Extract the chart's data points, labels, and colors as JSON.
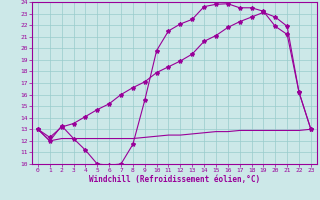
{
  "xlabel": "Windchill (Refroidissement éolien,°C)",
  "background_color": "#cce8e8",
  "grid_color": "#99cccc",
  "line_color": "#990099",
  "xlim": [
    -0.5,
    23.5
  ],
  "ylim": [
    10,
    24
  ],
  "xticks": [
    0,
    1,
    2,
    3,
    4,
    5,
    6,
    7,
    8,
    9,
    10,
    11,
    12,
    13,
    14,
    15,
    16,
    17,
    18,
    19,
    20,
    21,
    22,
    23
  ],
  "yticks": [
    10,
    11,
    12,
    13,
    14,
    15,
    16,
    17,
    18,
    19,
    20,
    21,
    22,
    23,
    24
  ],
  "curve1_x": [
    0,
    1,
    2,
    3,
    4,
    5,
    6,
    7,
    8,
    9,
    10,
    11,
    12,
    13,
    14,
    15,
    16,
    17,
    18,
    19,
    20,
    21,
    22,
    23
  ],
  "curve1_y": [
    13.0,
    12.0,
    13.3,
    12.2,
    11.2,
    10.0,
    9.9,
    10.0,
    11.7,
    15.5,
    19.8,
    21.5,
    22.1,
    22.5,
    23.6,
    23.8,
    23.85,
    23.5,
    23.5,
    23.2,
    21.9,
    21.2,
    16.2,
    13.0
  ],
  "curve2_x": [
    0,
    1,
    2,
    3,
    4,
    5,
    6,
    7,
    8,
    9,
    10,
    11,
    12,
    13,
    14,
    15,
    16,
    17,
    18,
    19,
    20,
    21,
    22,
    23
  ],
  "curve2_y": [
    13.0,
    12.3,
    13.2,
    13.5,
    14.1,
    14.7,
    15.2,
    16.0,
    16.6,
    17.1,
    17.9,
    18.4,
    18.9,
    19.5,
    20.6,
    21.1,
    21.8,
    22.3,
    22.7,
    23.1,
    22.7,
    21.9,
    16.2,
    13.0
  ],
  "curve3_x": [
    0,
    1,
    2,
    3,
    4,
    5,
    6,
    7,
    8,
    9,
    10,
    11,
    12,
    13,
    14,
    15,
    16,
    17,
    18,
    19,
    20,
    21,
    22,
    23
  ],
  "curve3_y": [
    13.0,
    12.0,
    12.2,
    12.2,
    12.2,
    12.2,
    12.2,
    12.2,
    12.2,
    12.3,
    12.4,
    12.5,
    12.5,
    12.6,
    12.7,
    12.8,
    12.8,
    12.9,
    12.9,
    12.9,
    12.9,
    12.9,
    12.9,
    13.0
  ]
}
